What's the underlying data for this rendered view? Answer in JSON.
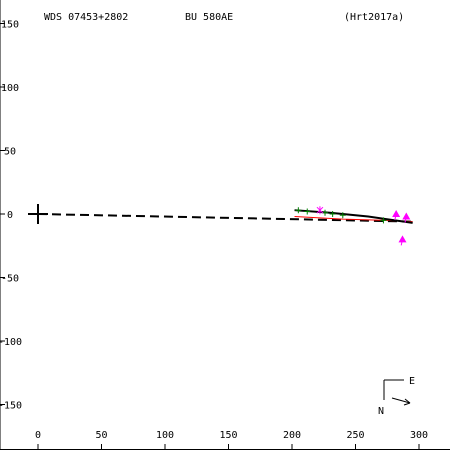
{
  "header": {
    "wds": "WDS 07453+2802",
    "discoverer": "BU  580AE",
    "reference": "(Hrt2017a)"
  },
  "compass": {
    "east": "E",
    "north": "N"
  },
  "chart_data": {
    "type": "scatter",
    "title": "",
    "xlabel": "",
    "ylabel": "",
    "xlim": [
      -28,
      328
    ],
    "ylim": [
      -185,
      165
    ],
    "xticks": [
      0,
      50,
      100,
      150,
      200,
      250,
      300
    ],
    "yticks": [
      150,
      100,
      50,
      0,
      -50,
      -100,
      -150
    ],
    "ytick_labels": [
      "150",
      "100",
      "50",
      "0",
      "-50",
      "-100",
      "-150"
    ],
    "grid": false,
    "primary": {
      "x": 0,
      "y": 0
    },
    "dashed_line": [
      [
        0,
        0
      ],
      [
        295,
        -6
      ]
    ],
    "orbit_black": [
      [
        202,
        3
      ],
      [
        230,
        1
      ],
      [
        260,
        -2
      ],
      [
        295,
        -7
      ]
    ],
    "orbit_red": [
      [
        202,
        -2
      ],
      [
        240,
        -4
      ],
      [
        275,
        -5
      ],
      [
        295,
        -6
      ]
    ],
    "observations": [
      {
        "x": 205,
        "y": 3,
        "marker": "plus",
        "color": "#008000"
      },
      {
        "x": 212,
        "y": 2,
        "marker": "plus",
        "color": "#008000"
      },
      {
        "x": 226,
        "y": 1,
        "marker": "plus",
        "color": "#008000"
      },
      {
        "x": 232,
        "y": 0,
        "marker": "plus",
        "color": "#008000"
      },
      {
        "x": 240,
        "y": -1,
        "marker": "plus",
        "color": "#008000"
      },
      {
        "x": 272,
        "y": -5,
        "marker": "plus",
        "color": "#008000"
      },
      {
        "x": 222,
        "y": 3,
        "marker": "star",
        "color": "#ff00ff"
      },
      {
        "x": 282,
        "y": 0,
        "marker": "triangle",
        "color": "#ff00ff"
      },
      {
        "x": 290,
        "y": -2,
        "marker": "triangle",
        "color": "#ff00ff"
      },
      {
        "x": 287,
        "y": -20,
        "marker": "triangle",
        "color": "#ff00ff"
      }
    ],
    "colors": {
      "axis": "#000000",
      "orbit": "#000000",
      "orbit_alt": "#ff0000",
      "observation": "#008000",
      "highlight": "#ff00ff"
    }
  }
}
